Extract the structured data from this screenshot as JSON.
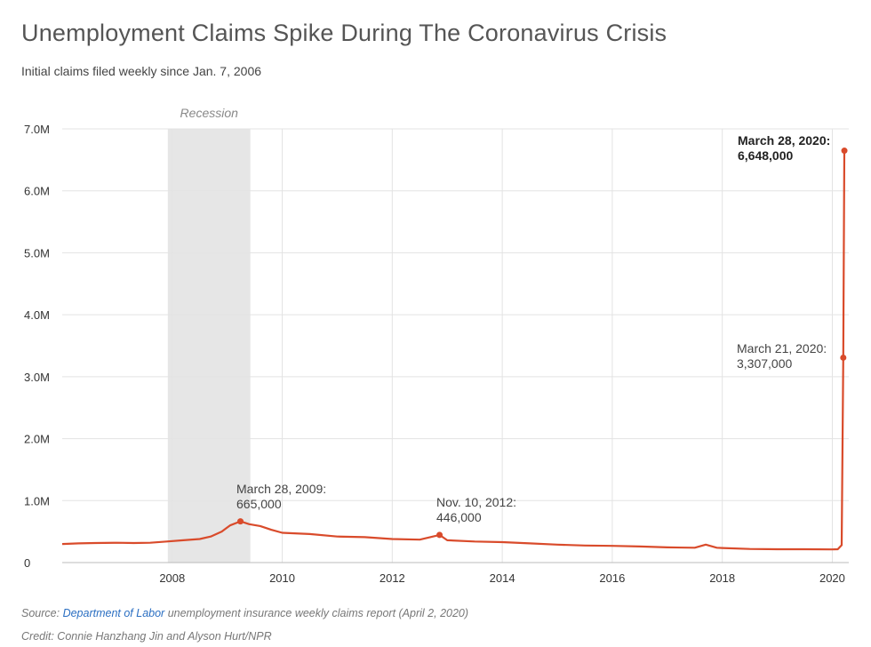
{
  "title": "Unemployment Claims Spike During The Coronavirus Crisis",
  "subtitle": "Initial claims filed weekly since Jan. 7, 2006",
  "footer": {
    "source_prefix": "Source: ",
    "source_link": "Department of Labor",
    "source_suffix": " unemployment insurance weekly claims report (April 2, 2020)",
    "credit": "Credit: Connie Hanzhang Jin and Alyson Hurt/NPR"
  },
  "colors": {
    "line": "#d94b2b",
    "recession": "#e6e6e6",
    "grid": "#e3e3e3"
  },
  "chart_data": {
    "type": "line",
    "title": "Unemployment Claims Spike During The Coronavirus Crisis",
    "xlabel": "",
    "ylabel": "",
    "xlim": [
      2006.0,
      2020.3
    ],
    "ylim": [
      0,
      7000000
    ],
    "x_ticks": [
      2008,
      2010,
      2012,
      2014,
      2016,
      2018,
      2020
    ],
    "x_tick_labels": [
      "2008",
      "2010",
      "2012",
      "2014",
      "2016",
      "2018",
      "2020"
    ],
    "y_ticks": [
      0,
      1000000,
      2000000,
      3000000,
      4000000,
      5000000,
      6000000,
      7000000
    ],
    "y_tick_labels": [
      "0",
      "1.0M",
      "2.0M",
      "3.0M",
      "4.0M",
      "5.0M",
      "6.0M",
      "7.0M"
    ],
    "recession": {
      "label": "Recession",
      "start": 2007.92,
      "end": 2009.42
    },
    "series": [
      {
        "name": "Initial claims",
        "x": [
          2006.0,
          2006.3,
          2006.6,
          2007.0,
          2007.3,
          2007.6,
          2007.9,
          2008.2,
          2008.5,
          2008.7,
          2008.9,
          2009.05,
          2009.24,
          2009.4,
          2009.6,
          2009.8,
          2010.0,
          2010.5,
          2011.0,
          2011.5,
          2012.0,
          2012.5,
          2012.86,
          2013.0,
          2013.5,
          2014.0,
          2014.5,
          2015.0,
          2015.5,
          2016.0,
          2016.5,
          2017.0,
          2017.5,
          2017.7,
          2017.9,
          2018.0,
          2018.5,
          2019.0,
          2019.5,
          2020.0,
          2020.1,
          2020.17,
          2020.2,
          2020.22,
          2020.24
        ],
        "values": [
          300000,
          310000,
          315000,
          320000,
          315000,
          320000,
          340000,
          360000,
          380000,
          420000,
          500000,
          600000,
          665000,
          620000,
          590000,
          530000,
          480000,
          460000,
          420000,
          410000,
          380000,
          370000,
          446000,
          360000,
          340000,
          330000,
          310000,
          290000,
          275000,
          270000,
          260000,
          245000,
          240000,
          290000,
          240000,
          235000,
          220000,
          215000,
          215000,
          212000,
          215000,
          281000,
          3307000,
          6648000,
          6648000
        ]
      }
    ],
    "annotations": [
      {
        "date": "March 28, 2009:",
        "value_label": "665,000",
        "x": 2009.24,
        "y": 665000,
        "bold": false
      },
      {
        "date": "Nov. 10, 2012:",
        "value_label": "446,000",
        "x": 2012.86,
        "y": 446000,
        "bold": false
      },
      {
        "date": "March 21, 2020:",
        "value_label": "3,307,000",
        "x": 2020.2,
        "y": 3307000,
        "bold": false
      },
      {
        "date": "March 28, 2020:",
        "value_label": "6,648,000",
        "x": 2020.22,
        "y": 6648000,
        "bold": true
      }
    ]
  }
}
